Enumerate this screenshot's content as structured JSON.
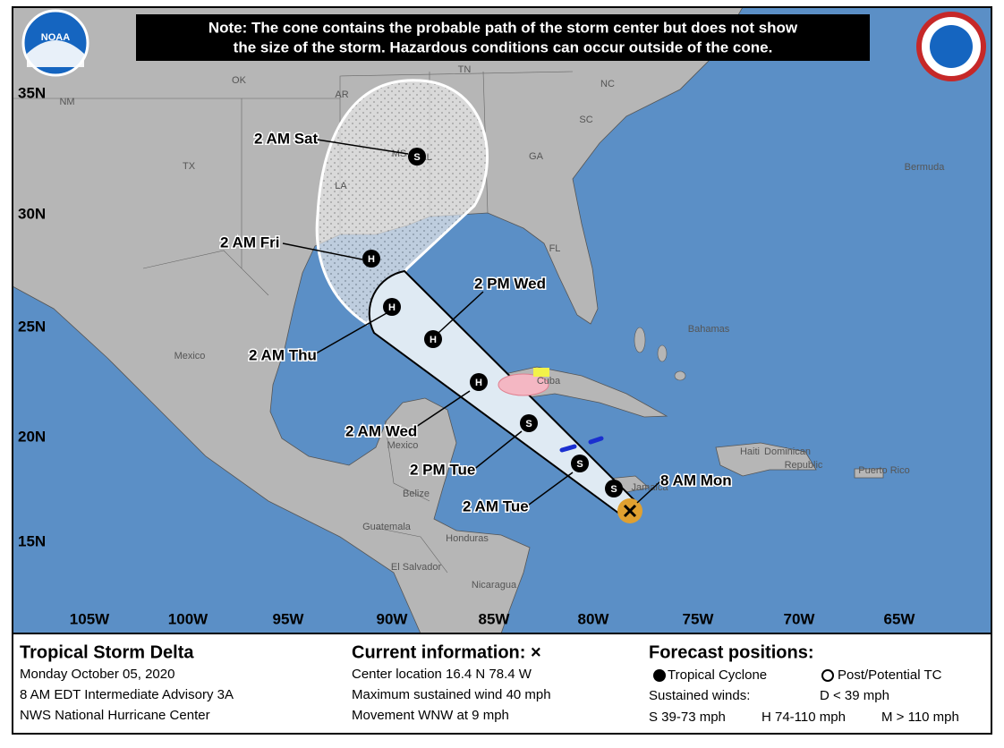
{
  "note": [
    "Note: The cone contains the probable path of the storm center but does not show",
    "the size of the storm. Hazardous conditions can occur outside of the cone."
  ],
  "logo": "NOAA",
  "lat_labels": [
    "35N",
    "30N",
    "25N",
    "20N",
    "15N"
  ],
  "lon_labels": [
    "105W",
    "100W",
    "95W",
    "90W",
    "85W",
    "80W",
    "75W",
    "70W",
    "65W"
  ],
  "places": [
    "NM",
    "OK",
    "AR",
    "TN",
    "NC",
    "SC",
    "GA",
    "AL",
    "MS",
    "LA",
    "TX",
    "FL",
    "Bermuda",
    "Bahamas",
    "Mexico",
    "Cuba",
    "Mexico",
    "Haiti",
    "Dominican",
    "Republic",
    "Puerto Rico",
    "Jamaica",
    "Belize",
    "Guatemala",
    "Honduras",
    "El Salvador",
    "Nicaragua"
  ],
  "forecast_symbols": [
    "S",
    "S",
    "S",
    "H",
    "H",
    "H",
    "H",
    "S"
  ],
  "forecast_labels": [
    "8 AM Mon",
    "2 AM Tue",
    "2 PM Tue",
    "2 AM Wed",
    "2 PM Wed",
    "2 AM Thu",
    "2 AM Fri",
    "2 AM Sat"
  ],
  "info": {
    "storm": [
      "Tropical Storm Delta",
      "Monday October 05, 2020",
      "8 AM EDT Intermediate Advisory 3A",
      "NWS National Hurricane Center"
    ],
    "current": [
      "Current information: ×",
      "Center location 16.4 N 78.4 W",
      "Maximum sustained wind 40 mph",
      "Movement WNW at 9 mph"
    ],
    "forecast": [
      "Forecast positions:",
      "Tropical Cyclone",
      "Post/Potential TC",
      "Sustained winds:",
      "D < 39 mph",
      "S 39-73 mph",
      "H 74-110 mph",
      "M > 110 mph"
    ]
  }
}
